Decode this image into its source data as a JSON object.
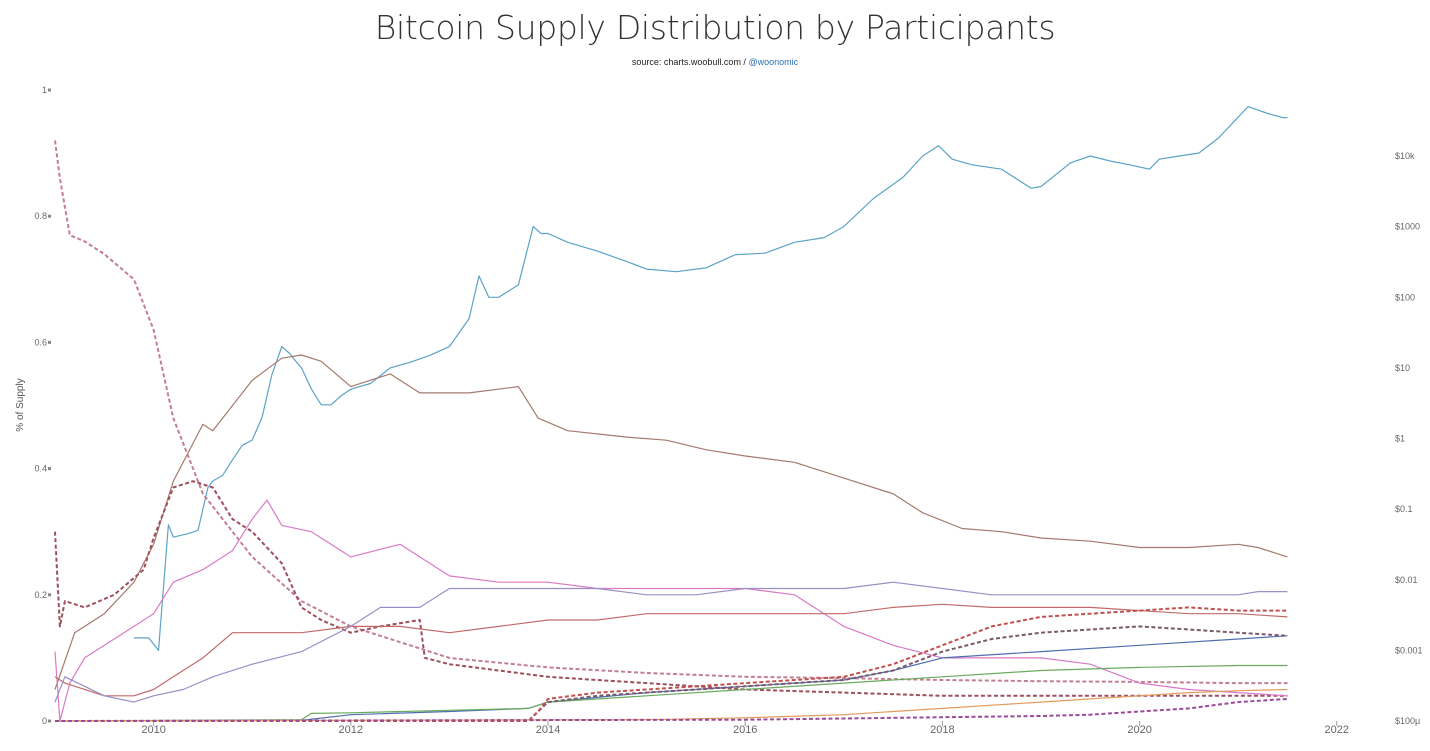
{
  "title": "Bitcoin Supply Distribution by Participants",
  "subtitle": {
    "source": "source: charts.woobull.com / ",
    "handle": "@woonomic"
  },
  "chart_data": {
    "type": "line",
    "title": "Bitcoin Supply Distribution by Participants",
    "ylabel": "% of Supply",
    "xlabel": "",
    "y_left_ticks": [
      "0",
      "0.2",
      "0.4",
      "0.6",
      "0.8",
      "1"
    ],
    "y_left_range": [
      0,
      1
    ],
    "y_right_ticks": [
      "$100μ",
      "$0.001",
      "$0.01",
      "$0.1",
      "$1",
      "$10",
      "$100",
      "$1000",
      "$10k"
    ],
    "y_right_scale": "log",
    "y_right_range": [
      0.0001,
      50000
    ],
    "x_ticks": [
      "2010",
      "2012",
      "2014",
      "2016",
      "2018",
      "2020",
      "2022"
    ],
    "x_range": [
      2009.0,
      2022.0
    ],
    "grid": false,
    "legend": "none",
    "series": [
      {
        "color": "#5ba3c7",
        "style": "solid",
        "axis": "right",
        "x": [
          2009.8,
          2009.95,
          2010.05,
          2010.15,
          2010.2,
          2010.35,
          2010.45,
          2010.5,
          2010.55,
          2010.6,
          2010.7,
          2010.8,
          2010.9,
          2011.0,
          2011.1,
          2011.2,
          2011.3,
          2011.38,
          2011.45,
          2011.5,
          2011.6,
          2011.7,
          2011.8,
          2011.9,
          2012.0,
          2012.2,
          2012.4,
          2012.6,
          2012.8,
          2013.0,
          2013.2,
          2013.3,
          2013.4,
          2013.5,
          2013.7,
          2013.85,
          2013.93,
          2014.0,
          2014.2,
          2014.5,
          2014.8,
          2015.0,
          2015.3,
          2015.6,
          2015.9,
          2016.2,
          2016.5,
          2016.8,
          2017.0,
          2017.3,
          2017.6,
          2017.8,
          2017.96,
          2018.1,
          2018.3,
          2018.6,
          2018.9,
          2019.0,
          2019.3,
          2019.5,
          2019.7,
          2019.9,
          2020.1,
          2020.2,
          2020.4,
          2020.6,
          2020.8,
          2020.95,
          2021.1,
          2021.3,
          2021.45,
          2021.5
        ],
        "y": [
          0.0015,
          0.0015,
          0.001,
          0.06,
          0.04,
          0.045,
          0.05,
          0.1,
          0.2,
          0.25,
          0.3,
          0.5,
          0.8,
          0.95,
          2,
          8,
          20,
          16,
          12,
          10,
          5,
          3,
          3,
          4,
          5,
          6,
          10,
          12,
          15,
          20,
          50,
          200,
          100,
          100,
          150,
          1000,
          800,
          800,
          600,
          450,
          320,
          250,
          230,
          260,
          400,
          420,
          600,
          700,
          1000,
          2500,
          5000,
          10000,
          14000,
          9000,
          7500,
          6500,
          3500,
          3700,
          8000,
          10000,
          8500,
          7500,
          6500,
          9000,
          10000,
          11000,
          18000,
          30000,
          50000,
          40000,
          35000,
          35000
        ]
      },
      {
        "color": "#a47a6e",
        "style": "solid",
        "axis": "left",
        "x": [
          2009.0,
          2009.2,
          2009.5,
          2009.8,
          2010.0,
          2010.2,
          2010.5,
          2010.6,
          2010.8,
          2011.0,
          2011.3,
          2011.5,
          2011.7,
          2012.0,
          2012.4,
          2012.7,
          2012.85,
          2013.2,
          2013.7,
          2013.9,
          2014.2,
          2014.8,
          2015.2,
          2015.6,
          2016.0,
          2016.5,
          2017.0,
          2017.5,
          2017.8,
          2018.2,
          2018.6,
          2019.0,
          2019.5,
          2020.0,
          2020.5,
          2021.0,
          2021.2,
          2021.5
        ],
        "y": [
          0.05,
          0.14,
          0.17,
          0.22,
          0.28,
          0.38,
          0.47,
          0.46,
          0.5,
          0.54,
          0.575,
          0.58,
          0.57,
          0.53,
          0.55,
          0.52,
          0.52,
          0.52,
          0.53,
          0.48,
          0.46,
          0.45,
          0.445,
          0.43,
          0.42,
          0.41,
          0.385,
          0.36,
          0.33,
          0.305,
          0.3,
          0.29,
          0.285,
          0.275,
          0.275,
          0.28,
          0.275,
          0.26
        ]
      },
      {
        "color": "#c47e94",
        "style": "dashed",
        "axis": "left",
        "x": [
          2009.0,
          2009.05,
          2009.15,
          2009.3,
          2009.5,
          2009.8,
          2010.0,
          2010.2,
          2010.5,
          2011.0,
          2011.5,
          2012.0,
          2013.0,
          2014.0,
          2015.0,
          2016.0,
          2017.0,
          2018.0,
          2019.0,
          2020.0,
          2021.0,
          2021.5
        ],
        "y": [
          0.92,
          0.86,
          0.77,
          0.76,
          0.74,
          0.7,
          0.62,
          0.48,
          0.36,
          0.26,
          0.19,
          0.15,
          0.1,
          0.085,
          0.076,
          0.07,
          0.068,
          0.065,
          0.063,
          0.062,
          0.06,
          0.06
        ]
      },
      {
        "color": "#9e4f5c",
        "style": "dashed",
        "axis": "left",
        "x": [
          2009.0,
          2009.05,
          2009.1,
          2009.3,
          2009.6,
          2009.9,
          2010.0,
          2010.2,
          2010.4,
          2010.6,
          2010.8,
          2011.0,
          2011.3,
          2011.5,
          2011.7,
          2012.0,
          2012.3,
          2012.7,
          2012.75,
          2013.0,
          2013.5,
          2014.0,
          2014.5,
          2015.0,
          2015.5,
          2016.0,
          2017.0,
          2018.0,
          2019.0,
          2020.0,
          2021.0,
          2021.5
        ],
        "y": [
          0.3,
          0.15,
          0.19,
          0.18,
          0.2,
          0.24,
          0.29,
          0.37,
          0.38,
          0.37,
          0.32,
          0.3,
          0.25,
          0.18,
          0.16,
          0.14,
          0.15,
          0.16,
          0.1,
          0.09,
          0.08,
          0.07,
          0.065,
          0.06,
          0.055,
          0.05,
          0.045,
          0.04,
          0.04,
          0.04,
          0.04,
          0.04
        ]
      },
      {
        "color": "#d97ac6",
        "style": "solid",
        "axis": "left",
        "x": [
          2009.0,
          2009.05,
          2009.15,
          2009.3,
          2009.6,
          2009.8,
          2010.0,
          2010.2,
          2010.5,
          2010.8,
          2011.0,
          2011.15,
          2011.3,
          2011.6,
          2012.0,
          2012.5,
          2013.0,
          2013.5,
          2014.0,
          2014.5,
          2015.0,
          2015.5,
          2016.0,
          2016.5,
          2017.0,
          2017.5,
          2018.0,
          2018.5,
          2019.0,
          2019.5,
          2020.0,
          2020.5,
          2021.0,
          2021.5
        ],
        "y": [
          0.11,
          0.0,
          0.06,
          0.1,
          0.13,
          0.15,
          0.17,
          0.22,
          0.24,
          0.27,
          0.32,
          0.35,
          0.31,
          0.3,
          0.26,
          0.28,
          0.23,
          0.22,
          0.22,
          0.21,
          0.21,
          0.21,
          0.21,
          0.2,
          0.15,
          0.12,
          0.1,
          0.1,
          0.1,
          0.09,
          0.06,
          0.05,
          0.045,
          0.04
        ]
      },
      {
        "color": "#c26a6a",
        "style": "solid",
        "axis": "left",
        "x": [
          2009.0,
          2009.1,
          2009.5,
          2009.8,
          2010.0,
          2010.2,
          2010.5,
          2010.8,
          2011.0,
          2011.5,
          2012.0,
          2012.5,
          2013.0,
          2013.5,
          2014.0,
          2014.5,
          2015.0,
          2015.5,
          2016.0,
          2016.5,
          2017.0,
          2017.5,
          2018.0,
          2018.5,
          2019.0,
          2019.5,
          2020.0,
          2020.5,
          2021.0,
          2021.5
        ],
        "y": [
          0.07,
          0.06,
          0.04,
          0.04,
          0.05,
          0.07,
          0.1,
          0.14,
          0.14,
          0.14,
          0.15,
          0.15,
          0.14,
          0.15,
          0.16,
          0.16,
          0.17,
          0.17,
          0.17,
          0.17,
          0.17,
          0.18,
          0.185,
          0.18,
          0.18,
          0.18,
          0.175,
          0.17,
          0.17,
          0.165
        ]
      },
      {
        "color": "#9b8ec7",
        "style": "solid",
        "axis": "left",
        "x": [
          2009.0,
          2009.1,
          2009.5,
          2009.8,
          2010.0,
          2010.3,
          2010.6,
          2011.0,
          2011.5,
          2012.0,
          2012.3,
          2012.7,
          2013.0,
          2013.5,
          2014.0,
          2014.5,
          2015.0,
          2015.5,
          2016.0,
          2016.5,
          2017.0,
          2017.5,
          2018.0,
          2018.5,
          2019.0,
          2019.5,
          2020.0,
          2020.5,
          2021.0,
          2021.2,
          2021.5
        ],
        "y": [
          0.03,
          0.07,
          0.04,
          0.03,
          0.04,
          0.05,
          0.07,
          0.09,
          0.11,
          0.15,
          0.18,
          0.18,
          0.21,
          0.21,
          0.21,
          0.21,
          0.2,
          0.2,
          0.21,
          0.21,
          0.21,
          0.22,
          0.21,
          0.2,
          0.2,
          0.2,
          0.2,
          0.2,
          0.2,
          0.205,
          0.205
        ]
      },
      {
        "color": "#4f6fb0",
        "style": "solid",
        "axis": "left",
        "x": [
          2009.0,
          2011.5,
          2012.0,
          2013.0,
          2013.8,
          2014.0,
          2015.0,
          2016.0,
          2017.0,
          2017.5,
          2018.0,
          2019.0,
          2020.0,
          2021.0,
          2021.5
        ],
        "y": [
          0.0,
          0.001,
          0.01,
          0.015,
          0.02,
          0.03,
          0.045,
          0.055,
          0.065,
          0.08,
          0.1,
          0.11,
          0.12,
          0.13,
          0.135
        ]
      },
      {
        "color": "#6aaa5e",
        "style": "solid",
        "axis": "left",
        "x": [
          2009.0,
          2011.5,
          2011.6,
          2012.0,
          2013.0,
          2013.8,
          2014.0,
          2015.0,
          2016.0,
          2017.0,
          2018.0,
          2019.0,
          2020.0,
          2021.0,
          2021.5
        ],
        "y": [
          0.0,
          0.002,
          0.012,
          0.013,
          0.017,
          0.02,
          0.03,
          0.04,
          0.05,
          0.06,
          0.07,
          0.08,
          0.085,
          0.088,
          0.088
        ]
      },
      {
        "color": "#7a5a6a",
        "style": "dashed",
        "axis": "left",
        "x": [
          2009.0,
          2013.8,
          2013.9,
          2014.0,
          2014.5,
          2015.0,
          2015.5,
          2016.0,
          2016.5,
          2017.0,
          2017.5,
          2018.0,
          2018.5,
          2019.0,
          2019.5,
          2020.0,
          2020.5,
          2021.0,
          2021.5
        ],
        "y": [
          0.0,
          0.0,
          0.015,
          0.03,
          0.04,
          0.045,
          0.05,
          0.055,
          0.06,
          0.065,
          0.08,
          0.11,
          0.13,
          0.14,
          0.145,
          0.15,
          0.145,
          0.14,
          0.135
        ]
      },
      {
        "color": "#c0504d",
        "style": "dashed",
        "axis": "left",
        "x": [
          2009.0,
          2013.8,
          2013.9,
          2014.0,
          2014.5,
          2015.0,
          2015.5,
          2016.0,
          2016.5,
          2017.0,
          2017.5,
          2018.0,
          2018.5,
          2019.0,
          2019.5,
          2020.0,
          2020.5,
          2021.0,
          2021.5
        ],
        "y": [
          0.0,
          0.0,
          0.015,
          0.035,
          0.045,
          0.05,
          0.055,
          0.06,
          0.065,
          0.07,
          0.09,
          0.12,
          0.15,
          0.165,
          0.17,
          0.175,
          0.18,
          0.175,
          0.175
        ]
      },
      {
        "color": "#e39a5a",
        "style": "solid",
        "axis": "left",
        "x": [
          2009.0,
          2015.0,
          2016.0,
          2017.0,
          2017.5,
          2018.0,
          2018.5,
          2019.0,
          2019.5,
          2020.0,
          2020.5,
          2021.0,
          2021.5
        ],
        "y": [
          0.0,
          0.002,
          0.005,
          0.01,
          0.015,
          0.02,
          0.025,
          0.03,
          0.035,
          0.04,
          0.045,
          0.048,
          0.05
        ]
      },
      {
        "color": "#9b4a9b",
        "style": "dashed",
        "axis": "left",
        "x": [
          2009.0,
          2016.0,
          2017.0,
          2018.0,
          2019.0,
          2019.5,
          2020.0,
          2020.5,
          2021.0,
          2021.5
        ],
        "y": [
          0.0,
          0.002,
          0.004,
          0.006,
          0.008,
          0.01,
          0.015,
          0.02,
          0.03,
          0.035
        ]
      }
    ]
  }
}
